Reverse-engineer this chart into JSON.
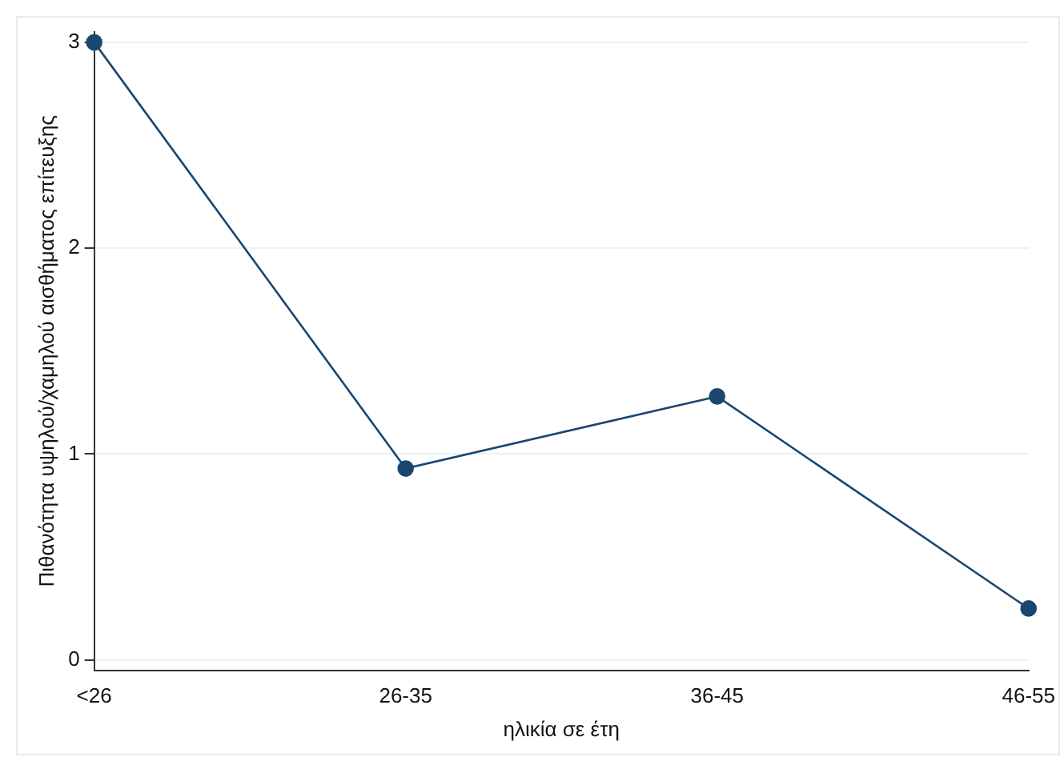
{
  "chart_data": {
    "type": "line",
    "xlabel": "ηλικία σε έτη",
    "ylabel": "Πιθανότητα υψηλού/χαμηλού αισθήματος επίτευξης",
    "categories": [
      "<26",
      "26-35",
      "36-45",
      "46-55"
    ],
    "series": [
      {
        "color": "#1a476f",
        "values": [
          3,
          0.93,
          1.28,
          0.25
        ]
      }
    ],
    "ylim": [
      -0.05,
      3.05
    ],
    "yticks": [
      0,
      1,
      2,
      3
    ],
    "grid": "y",
    "marker": "circle",
    "line_style": "solid",
    "legend": false
  }
}
